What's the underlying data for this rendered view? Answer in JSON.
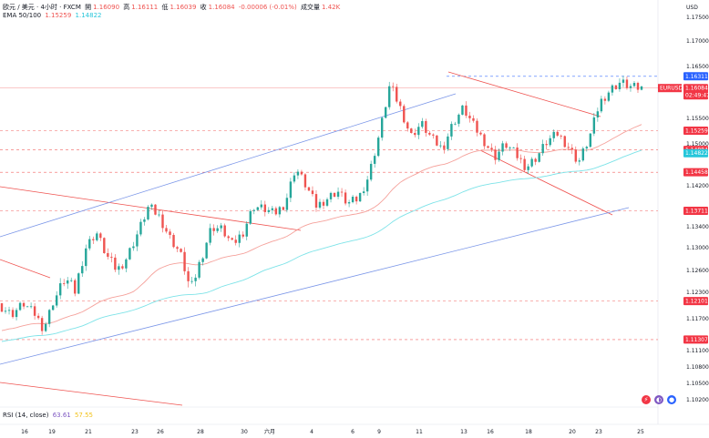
{
  "header": {
    "symbol_line": "欧元 / 美元 · 4小时 · FXCM",
    "ohlc": [
      {
        "label": "開",
        "value": "1.16090"
      },
      {
        "label": "高",
        "value": "1.16111"
      },
      {
        "label": "低",
        "value": "1.16039"
      },
      {
        "label": "收",
        "value": "1.16084"
      }
    ],
    "change": "-0.00006 (-0.01%)",
    "volume_label": "成交量",
    "volume": "1.42K",
    "ema_label": "EMA 50/100",
    "ema50_value": "1.15259",
    "ema100_value": "1.14822",
    "rsi_label": "RSI (14, close)",
    "rsi_value1": "63.61",
    "rsi_value2": "57.55"
  },
  "colors": {
    "up": "#26a69a",
    "down": "#ef5350",
    "ema50": "#f5a19b",
    "ema100": "#7de3e8",
    "channel": "#7b96e8",
    "resistance": "#ef5350",
    "rsi2": "#f2c21b"
  },
  "chart_data": {
    "type": "candlestick",
    "currency": "USD",
    "y_ticks": [
      "1.17500",
      "1.17000",
      "1.16500",
      "1.15500",
      "1.15000",
      "1.14200",
      "1.13400",
      "1.13000",
      "1.12600",
      "1.12300",
      "1.11700",
      "1.11100",
      "1.10800",
      "1.10500",
      "1.10200"
    ],
    "x_ticks": [
      "16",
      "19",
      "21",
      "23",
      "26",
      "28",
      "30",
      "六月",
      "4",
      "6",
      "9",
      "11",
      "13",
      "16",
      "18",
      "20",
      "23",
      "25"
    ],
    "price_tags": [
      {
        "label": "1.16311",
        "price": 1.16311,
        "style": "blue"
      },
      {
        "label": "1.16084",
        "price": 1.16084,
        "style": "red",
        "symbol": "EURUSD",
        "countdown": "02:49:47"
      },
      {
        "label": "1.15259",
        "price": 1.15259,
        "style": "red"
      },
      {
        "label": "1.14884",
        "price": 1.14884,
        "style": "red"
      },
      {
        "label": "1.14822",
        "price": 1.14822,
        "style": "cyan"
      },
      {
        "label": "1.14458",
        "price": 1.14458,
        "style": "red"
      },
      {
        "label": "1.13711",
        "price": 1.13711,
        "style": "red"
      },
      {
        "label": "1.12101",
        "price": 1.12101,
        "style": "red"
      },
      {
        "label": "1.11307",
        "price": 1.11307,
        "style": "red"
      }
    ],
    "ohlc_anchors": [
      [
        1.1205,
        1.1245,
        1.1165,
        1.1195
      ],
      [
        1.1195,
        1.122,
        1.116,
        1.118
      ],
      [
        1.118,
        1.1215,
        1.1155,
        1.1205
      ],
      [
        1.1205,
        1.123,
        1.117,
        1.1185
      ],
      [
        1.1185,
        1.1205,
        1.113,
        1.115
      ],
      [
        1.115,
        1.1225,
        1.1145,
        1.1215
      ],
      [
        1.1215,
        1.1265,
        1.12,
        1.125
      ],
      [
        1.125,
        1.127,
        1.1215,
        1.123
      ],
      [
        1.123,
        1.131,
        1.1225,
        1.13
      ],
      [
        1.13,
        1.1345,
        1.128,
        1.133
      ],
      [
        1.133,
        1.1345,
        1.1275,
        1.1285
      ],
      [
        1.1285,
        1.131,
        1.125,
        1.126
      ],
      [
        1.126,
        1.129,
        1.124,
        1.1285
      ],
      [
        1.1285,
        1.134,
        1.127,
        1.133
      ],
      [
        1.133,
        1.139,
        1.132,
        1.138
      ],
      [
        1.138,
        1.1415,
        1.135,
        1.136
      ],
      [
        1.136,
        1.137,
        1.131,
        1.132
      ],
      [
        1.132,
        1.134,
        1.128,
        1.129
      ],
      [
        1.129,
        1.131,
        1.1215,
        1.123
      ],
      [
        1.123,
        1.129,
        1.122,
        1.128
      ],
      [
        1.128,
        1.135,
        1.127,
        1.134
      ],
      [
        1.134,
        1.1385,
        1.132,
        1.1335
      ],
      [
        1.1335,
        1.1345,
        1.129,
        1.1305
      ],
      [
        1.1305,
        1.134,
        1.1295,
        1.133
      ],
      [
        1.133,
        1.139,
        1.1325,
        1.138
      ],
      [
        1.138,
        1.142,
        1.136,
        1.1375
      ],
      [
        1.1375,
        1.1395,
        1.1345,
        1.1365
      ],
      [
        1.1365,
        1.14,
        1.1355,
        1.1385
      ],
      [
        1.1385,
        1.147,
        1.138,
        1.1455
      ],
      [
        1.1455,
        1.1465,
        1.14,
        1.142
      ],
      [
        1.142,
        1.144,
        1.1365,
        1.138
      ],
      [
        1.138,
        1.1405,
        1.136,
        1.1395
      ],
      [
        1.1395,
        1.1425,
        1.138,
        1.141
      ],
      [
        1.141,
        1.144,
        1.137,
        1.1385
      ],
      [
        1.1385,
        1.14,
        1.1365,
        1.1395
      ],
      [
        1.1395,
        1.145,
        1.1385,
        1.144
      ],
      [
        1.144,
        1.153,
        1.143,
        1.152
      ],
      [
        1.152,
        1.1625,
        1.1515,
        1.1615
      ],
      [
        1.1615,
        1.162,
        1.156,
        1.157
      ],
      [
        1.157,
        1.158,
        1.15,
        1.1515
      ],
      [
        1.1515,
        1.155,
        1.149,
        1.154
      ],
      [
        1.154,
        1.156,
        1.15,
        1.151
      ],
      [
        1.151,
        1.1525,
        1.1475,
        1.149
      ],
      [
        1.149,
        1.155,
        1.148,
        1.154
      ],
      [
        1.154,
        1.16,
        1.153,
        1.157
      ],
      [
        1.157,
        1.1585,
        1.152,
        1.1535
      ],
      [
        1.1535,
        1.156,
        1.1495,
        1.1505
      ],
      [
        1.1505,
        1.1515,
        1.146,
        1.1475
      ],
      [
        1.1475,
        1.151,
        1.1455,
        1.15
      ],
      [
        1.15,
        1.1525,
        1.147,
        1.148
      ],
      [
        1.148,
        1.1495,
        1.1445,
        1.1455
      ],
      [
        1.1455,
        1.148,
        1.1445,
        1.1475
      ],
      [
        1.1475,
        1.1515,
        1.1465,
        1.1505
      ],
      [
        1.1505,
        1.153,
        1.148,
        1.152
      ],
      [
        1.152,
        1.154,
        1.149,
        1.1495
      ],
      [
        1.1495,
        1.1505,
        1.1455,
        1.1465
      ],
      [
        1.1465,
        1.152,
        1.146,
        1.151
      ],
      [
        1.151,
        1.159,
        1.1505,
        1.158
      ],
      [
        1.158,
        1.162,
        1.157,
        1.1605
      ],
      [
        1.1605,
        1.1635,
        1.159,
        1.162
      ],
      [
        1.162,
        1.1631,
        1.16,
        1.161
      ],
      [
        1.1609,
        1.1611,
        1.1604,
        1.1608
      ]
    ]
  }
}
